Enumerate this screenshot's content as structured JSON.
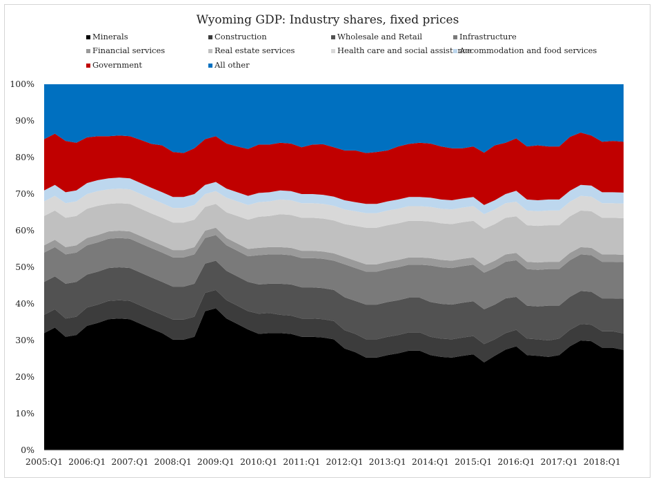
{
  "chart_data": {
    "type": "area",
    "stacked": true,
    "percent": true,
    "title": "Wyoming GDP: Industry shares, fixed prices",
    "xlabel": "",
    "ylabel": "",
    "ylim": [
      0,
      100
    ],
    "y_ticks": [
      "0%",
      "10%",
      "20%",
      "30%",
      "40%",
      "50%",
      "60%",
      "70%",
      "80%",
      "90%",
      "100%"
    ],
    "x_tick_labels": [
      "2005:Q1",
      "2006:Q1",
      "2007:Q1",
      "2008:Q1",
      "2009:Q1",
      "2010:Q1",
      "2011:Q1",
      "2012:Q1",
      "2013:Q1",
      "2014:Q1",
      "2015:Q1",
      "2016:Q1",
      "2017:Q1",
      "2018:Q1"
    ],
    "legend_position": "top",
    "x": [
      "2005:Q1",
      "2005:Q2",
      "2005:Q3",
      "2005:Q4",
      "2006:Q1",
      "2006:Q2",
      "2006:Q3",
      "2006:Q4",
      "2007:Q1",
      "2007:Q2",
      "2007:Q3",
      "2007:Q4",
      "2008:Q1",
      "2008:Q2",
      "2008:Q3",
      "2008:Q4",
      "2009:Q1",
      "2009:Q2",
      "2009:Q3",
      "2009:Q4",
      "2010:Q1",
      "2010:Q2",
      "2010:Q3",
      "2010:Q4",
      "2011:Q1",
      "2011:Q2",
      "2011:Q3",
      "2011:Q4",
      "2012:Q1",
      "2012:Q2",
      "2012:Q3",
      "2012:Q4",
      "2013:Q1",
      "2013:Q2",
      "2013:Q3",
      "2013:Q4",
      "2014:Q1",
      "2014:Q2",
      "2014:Q3",
      "2014:Q4",
      "2015:Q1",
      "2015:Q2",
      "2015:Q3",
      "2015:Q4",
      "2016:Q1",
      "2016:Q2",
      "2016:Q3",
      "2016:Q4",
      "2017:Q1",
      "2017:Q2",
      "2017:Q3",
      "2017:Q4",
      "2018:Q1",
      "2018:Q2",
      "2018:Q3"
    ],
    "series": [
      {
        "name": "Minerals",
        "color": "#000000",
        "values": [
          32,
          33.5,
          31,
          31.5,
          34,
          34.8,
          35.8,
          36,
          35.8,
          34.5,
          33.2,
          32,
          30.2,
          30.2,
          31,
          38,
          38.8,
          36,
          34.5,
          33,
          31.8,
          32,
          32,
          31.8,
          31,
          31,
          30.8,
          30.3,
          27.8,
          26.8,
          25.3,
          25.3,
          26,
          26.5,
          27.2,
          27.2,
          26,
          25.5,
          25.3,
          25.8,
          26.2,
          24,
          25.8,
          27.5,
          28.4,
          26,
          25.8,
          25.5,
          26,
          28.4,
          30,
          29.8,
          28,
          28,
          27.4
        ]
      },
      {
        "name": "Construction",
        "color": "#3c3c3c",
        "values": [
          5,
          5,
          5,
          5,
          5,
          5,
          5,
          5,
          5,
          5,
          5,
          5,
          5.5,
          5.5,
          5.5,
          5,
          5,
          5,
          5,
          5,
          5.5,
          5.5,
          5,
          5,
          5,
          5,
          5,
          5,
          5,
          5,
          5,
          5,
          5,
          5,
          5,
          5,
          5,
          5,
          5,
          5,
          5,
          5,
          4.5,
          4.5,
          4.5,
          4.5,
          4.5,
          4.5,
          4.5,
          4.5,
          4.5,
          4.5,
          4.5,
          4.5,
          4.5
        ]
      },
      {
        "name": "Wholesale and Retail",
        "color": "#525252",
        "values": [
          9,
          9,
          9.5,
          9.5,
          9,
          9,
          9,
          9,
          9,
          9,
          9,
          9,
          9,
          9,
          9,
          8,
          8,
          8,
          8,
          8,
          8,
          8,
          8.5,
          8.5,
          8.5,
          8.5,
          8.5,
          8.5,
          9,
          9,
          9.5,
          9.5,
          9.5,
          9.5,
          9.5,
          9.5,
          9.5,
          9.5,
          9.5,
          9.5,
          9.5,
          9.5,
          9.5,
          9.5,
          9,
          9,
          9,
          9.5,
          9,
          9,
          9,
          9,
          9,
          9,
          9.5
        ]
      },
      {
        "name": "Infrastructure",
        "color": "#7a7a7a",
        "values": [
          8,
          8,
          8,
          8,
          8,
          8,
          8,
          8,
          8,
          8,
          8,
          8,
          8,
          8,
          8,
          7,
          7,
          7,
          7,
          7,
          8,
          8,
          8,
          8,
          8,
          8,
          8,
          8,
          9,
          9,
          9,
          9,
          9,
          9,
          9,
          9,
          10,
          10,
          10,
          10,
          10,
          10,
          10,
          10,
          10,
          10,
          10,
          10,
          10,
          10,
          10,
          10,
          10,
          10,
          10
        ]
      },
      {
        "name": "Financial services",
        "color": "#9a9a9a",
        "values": [
          2,
          2,
          2,
          2,
          2,
          2,
          2,
          2,
          2,
          2,
          2,
          2,
          2,
          2,
          2,
          2,
          2,
          2,
          2,
          2,
          2,
          2,
          2,
          2,
          2,
          2,
          2,
          2,
          2,
          2,
          2,
          2,
          2,
          2,
          2,
          2,
          2,
          2,
          2,
          2,
          2,
          2,
          2,
          2,
          2,
          2,
          2,
          2,
          2,
          2,
          2,
          2,
          2,
          2,
          2
        ]
      },
      {
        "name": "Real estate services",
        "color": "#c0c0c0",
        "values": [
          8,
          8,
          8,
          8,
          8,
          8,
          7.5,
          7.5,
          7.5,
          7.5,
          7.5,
          7.5,
          7.5,
          7.5,
          7.5,
          6.5,
          6.5,
          7,
          7.5,
          8,
          8.5,
          8.5,
          9,
          9,
          9,
          9,
          9,
          9,
          9,
          9.5,
          10,
          10,
          10,
          10,
          10,
          10,
          10,
          10,
          10,
          10,
          10,
          10,
          10,
          10,
          10,
          10,
          10,
          10,
          10,
          10,
          10,
          10,
          10,
          10,
          10
        ]
      },
      {
        "name": "Health care and social assistance",
        "color": "#d8d8d8",
        "values": [
          4,
          4,
          4,
          4,
          4,
          4,
          4,
          4,
          4,
          4,
          4,
          4,
          4,
          4,
          4,
          3.5,
          3.5,
          4,
          4,
          4,
          4,
          4,
          4,
          4,
          4,
          4,
          4,
          4,
          4,
          4,
          4,
          4,
          4,
          4,
          4,
          4,
          4,
          4,
          4,
          4,
          4,
          4,
          4,
          4,
          4,
          4,
          4,
          4,
          4,
          4,
          4,
          4,
          4,
          4,
          4
        ]
      },
      {
        "name": "Accommodation and food services",
        "color": "#bdd7ee",
        "values": [
          3,
          3,
          3,
          3,
          3,
          3,
          3,
          3,
          3,
          3,
          3,
          3,
          3,
          3,
          3,
          2.5,
          2.5,
          2.5,
          2.5,
          2.5,
          2.5,
          2.5,
          2.5,
          2.5,
          2.5,
          2.5,
          2.5,
          2.5,
          2.5,
          2.5,
          2.5,
          2.5,
          2.5,
          2.5,
          2.5,
          2.5,
          2.5,
          2.5,
          2.5,
          2.5,
          2.5,
          2.5,
          2.5,
          2.5,
          3,
          3,
          3,
          3,
          3,
          3,
          3,
          3,
          3,
          3,
          3
        ]
      },
      {
        "name": "Government",
        "color": "#c00000",
        "values": [
          14,
          14,
          14,
          13,
          12.5,
          12,
          11.5,
          11.5,
          11.5,
          11.8,
          12,
          12.8,
          12.3,
          12,
          12.5,
          12.5,
          12.5,
          12.3,
          12.5,
          12.8,
          13.2,
          13,
          13,
          13,
          12.8,
          13.5,
          13.8,
          13.5,
          13.6,
          14.1,
          13.9,
          14.2,
          13.9,
          14.5,
          14.5,
          14.8,
          14.8,
          14.5,
          14.2,
          13.7,
          13.8,
          14.3,
          15,
          14,
          14.3,
          14.5,
          15,
          14.5,
          14.5,
          14.7,
          14.3,
          13.7,
          13.8,
          14,
          13.9
        ]
      },
      {
        "name": "All other",
        "color": "#0070c0",
        "values": [
          15,
          14.5,
          15,
          16,
          14.5,
          15,
          15.7,
          15,
          15.7,
          16.2,
          16.3,
          17.2,
          18.5,
          18.8,
          17.5,
          16,
          14.2,
          15.2,
          15,
          14.7,
          14.5,
          14.5,
          15,
          15.2,
          15.2,
          15,
          14.4,
          15.2,
          15.5,
          15.6,
          15.8,
          15.5,
          15.1,
          15,
          14.8,
          14,
          15.2,
          15.5,
          15.5,
          16,
          16,
          17.2,
          17.2,
          16,
          15.3,
          17,
          16.7,
          16.5,
          16,
          13.9,
          13.9,
          15.5,
          15.7,
          15.5,
          15.7
        ]
      }
    ]
  }
}
